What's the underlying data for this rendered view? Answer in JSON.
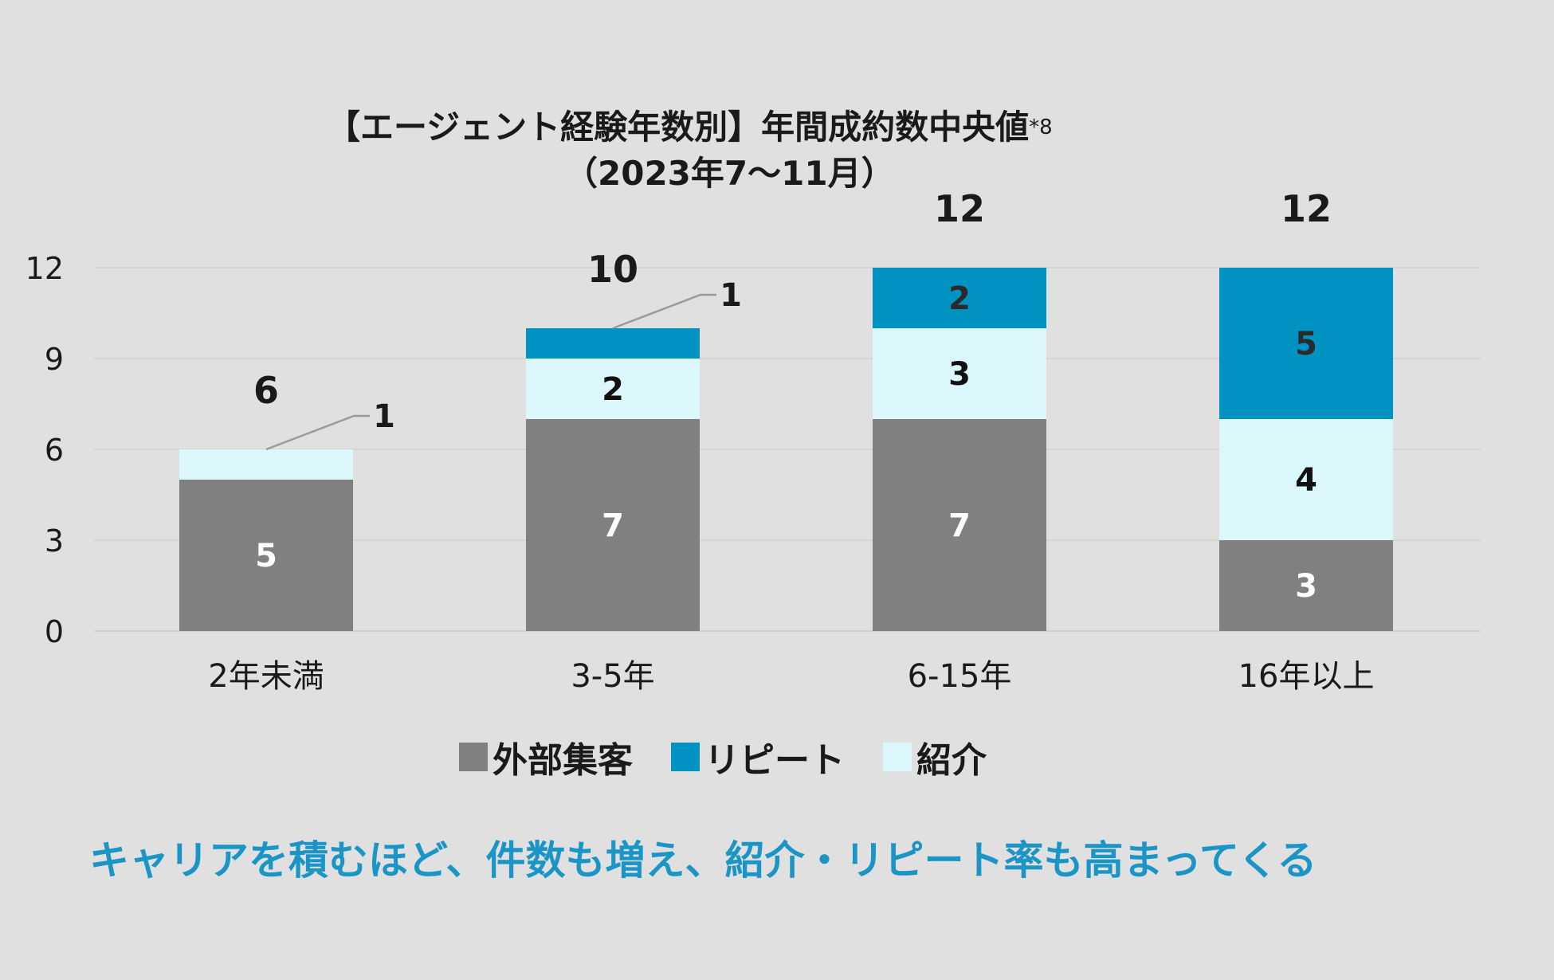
{
  "chart_data": {
    "type": "bar",
    "stacked": true,
    "title": "【エージェント経験年数別】年間成約数中央値",
    "title_note": "*8",
    "subtitle": "（2023年7～11月）",
    "categories": [
      "2年未満",
      "3-5年",
      "6-15年",
      "16年以上"
    ],
    "series": [
      {
        "name": "外部集客",
        "color": "#808080",
        "values": [
          5,
          7,
          7,
          3
        ]
      },
      {
        "name": "紹介",
        "color": "#dcf7fc",
        "values": [
          1,
          2,
          3,
          4
        ]
      },
      {
        "name": "リピート",
        "color": "#0092c0",
        "values": [
          0,
          1,
          2,
          5
        ]
      }
    ],
    "totals": [
      "6",
      "10",
      "12",
      "12"
    ],
    "yticks": [
      "0",
      "3",
      "6",
      "9",
      "12"
    ],
    "ylim": [
      0,
      12
    ],
    "grid": true,
    "legend_position": "bottom",
    "legend": [
      "外部集客",
      "リピート",
      "紹介"
    ]
  },
  "caption": "キャリアを積むほど、件数も増え、紹介・リピート率も高まってくる"
}
